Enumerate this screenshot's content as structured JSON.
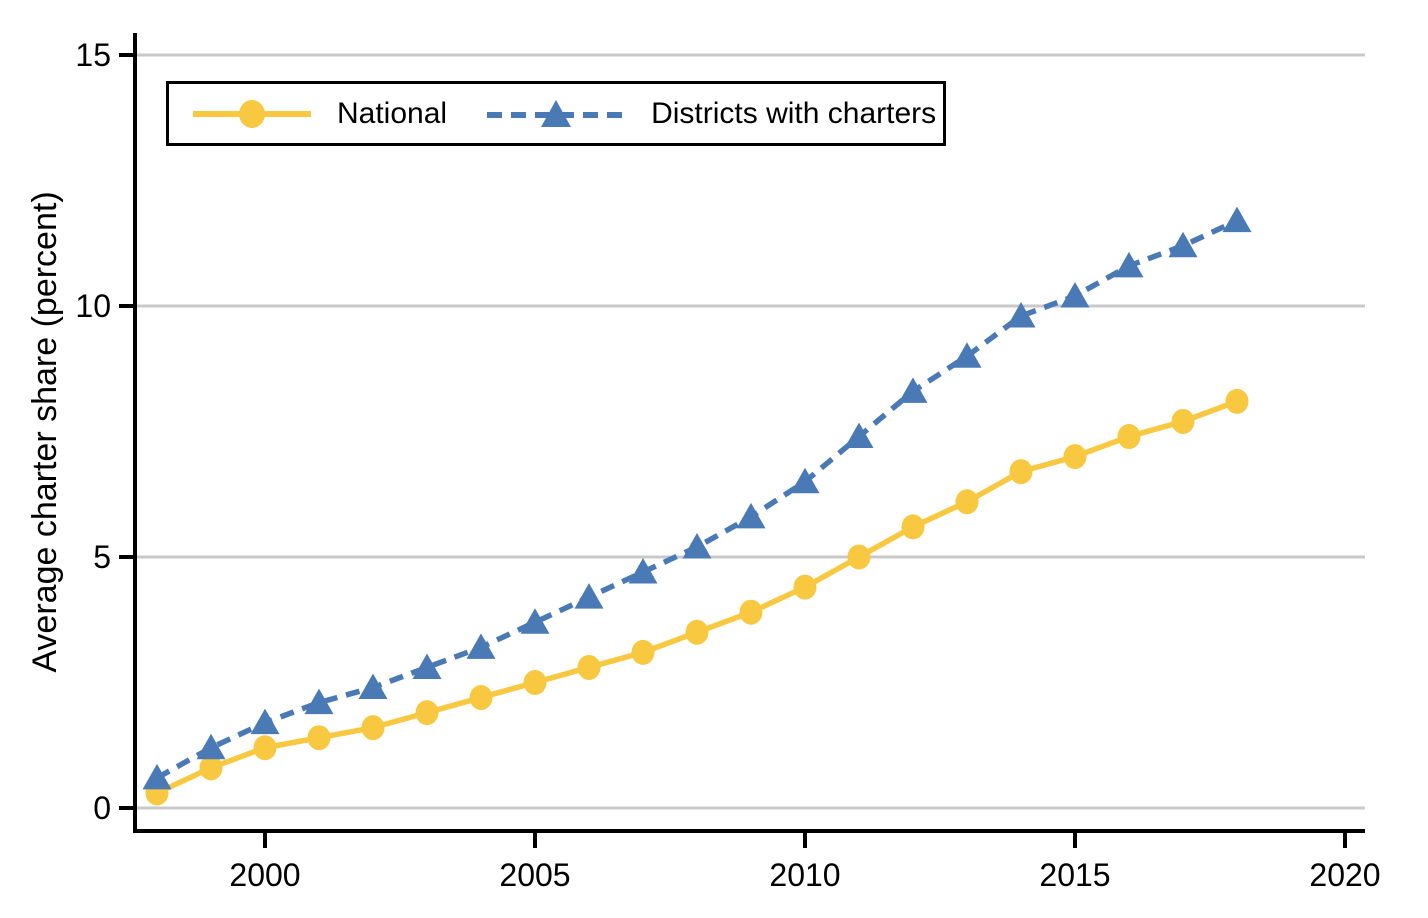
{
  "figure": {
    "background_color": "#ffffff"
  },
  "chart_data": {
    "type": "line",
    "title": "",
    "xlabel": "",
    "ylabel": "Average charter share (percent)",
    "x": [
      1998,
      1999,
      2000,
      2001,
      2002,
      2003,
      2004,
      2005,
      2006,
      2007,
      2008,
      2009,
      2010,
      2011,
      2012,
      2013,
      2014,
      2015,
      2016,
      2017,
      2018
    ],
    "series": [
      {
        "name": "National",
        "marker": "circle",
        "line_style": "solid",
        "color": "#F7C840",
        "values": [
          0.3,
          0.8,
          1.2,
          1.4,
          1.6,
          1.9,
          2.2,
          2.5,
          2.8,
          3.1,
          3.5,
          3.9,
          4.4,
          5.0,
          5.6,
          6.1,
          6.7,
          7.0,
          7.4,
          7.7,
          8.1
        ]
      },
      {
        "name": "Districts with charters",
        "marker": "triangle",
        "line_style": "dashed",
        "color": "#4A7AB5",
        "values": [
          0.6,
          1.2,
          1.7,
          2.1,
          2.4,
          2.8,
          3.2,
          3.7,
          4.2,
          4.7,
          5.2,
          5.8,
          6.5,
          7.4,
          8.3,
          9.0,
          9.8,
          10.2,
          10.8,
          11.2,
          11.7
        ]
      }
    ],
    "xticks": [
      2000,
      2005,
      2010,
      2015,
      2020
    ],
    "yticks": [
      0,
      5,
      10,
      15
    ],
    "xlim": [
      1997.6,
      2020.4
    ],
    "ylim": [
      -0.46,
      15.44
    ],
    "grid": "horizontal",
    "grid_color": "#C9C9C9",
    "axis_color": "#000000",
    "tick_label_color": "#000000",
    "legend_position": "top-left-inside"
  }
}
